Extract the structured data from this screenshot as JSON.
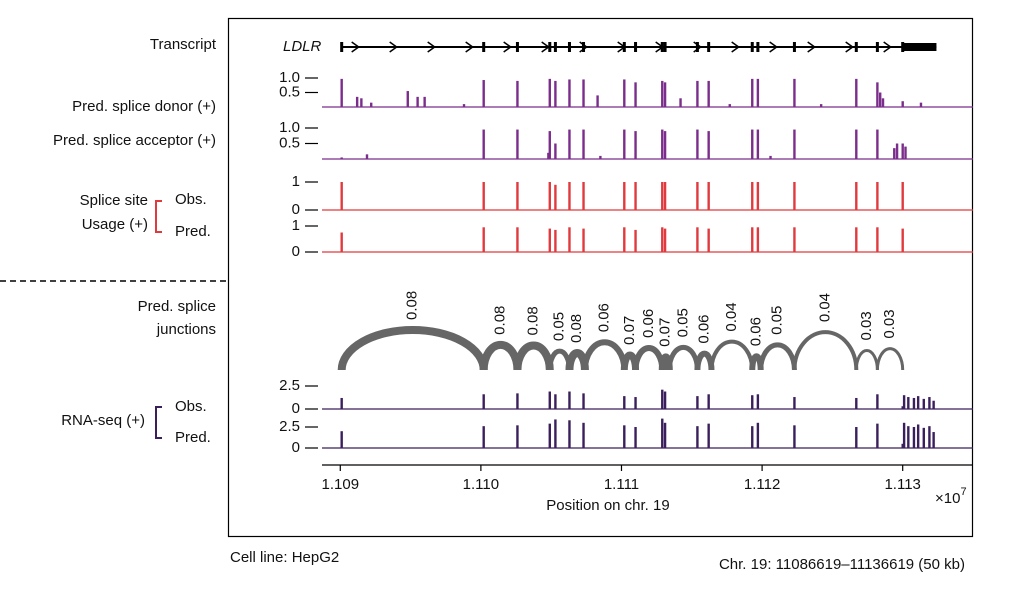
{
  "chart_data": {
    "type": "genome-tracks",
    "xlim": [
      1.10887,
      1.1135
    ],
    "xticks": [
      1.109,
      {
        "value": 1.11,
        "label": "1.110"
      },
      1.111,
      1.112,
      1.113
    ],
    "xlabel": "Position on chr. 19",
    "x_multiplier": "×10",
    "x_multiplier_exponent": "7",
    "footer_left": "Cell line: HepG2",
    "footer_right": "Chr. 19: 11086619–11136619 (50 kb)",
    "transcript": {
      "label": "Transcript",
      "name": "LDLR",
      "start": 1.10901,
      "end": 1.11324,
      "color": "#000000"
    },
    "sites": [
      1.10901,
      1.11002,
      1.11026,
      1.11049,
      1.11053,
      1.11063,
      1.11073,
      1.11102,
      1.1111,
      1.11129,
      1.11131,
      1.11154,
      1.11162,
      1.11193,
      1.11197,
      1.11223,
      1.11267,
      1.11282,
      1.113
    ],
    "usage_label": [
      "Splice site",
      "Usage (+)"
    ],
    "rna_label": "RNA-seq (+)",
    "junction_label": [
      "Pred. splice",
      "junctions"
    ],
    "tracks": [
      {
        "label": "Pred. splice donor (+)",
        "color": "#7b2d8b",
        "ylim": [
          0,
          1
        ],
        "yticks": [
          {
            "value": 1,
            "label": "1.0"
          },
          0.5
        ],
        "x": [
          1.10901,
          1.11002,
          1.11026,
          1.11049,
          1.11053,
          1.11063,
          1.11073,
          1.11102,
          1.1111,
          1.11129,
          1.11131,
          1.11154,
          1.11162,
          1.11193,
          1.11197,
          1.11223,
          1.11267,
          1.11282,
          1.113,
          1.10912,
          1.10915,
          1.10922,
          1.10948,
          1.10955,
          1.1096,
          1.10988,
          1.11083,
          1.11142,
          1.11177,
          1.11242,
          1.11284,
          1.11286,
          1.11313
        ],
        "values": [
          0.97,
          0.93,
          0.9,
          0.97,
          0.9,
          0.95,
          0.95,
          0.95,
          0.85,
          0.9,
          0.85,
          0.9,
          0.9,
          0.97,
          0.97,
          0.97,
          0.97,
          0.85,
          0.2,
          0.35,
          0.3,
          0.15,
          0.55,
          0.35,
          0.35,
          0.1,
          0.4,
          0.3,
          0.1,
          0.1,
          0.5,
          0.3,
          0.15
        ]
      },
      {
        "label": "Pred. splice acceptor (+)",
        "color": "#7b2d8b",
        "ylim": [
          0,
          1
        ],
        "yticks": [
          {
            "value": 1,
            "label": "1.0"
          },
          0.5
        ],
        "x": [
          1.10901,
          1.11002,
          1.11026,
          1.11049,
          1.11053,
          1.11063,
          1.11073,
          1.11102,
          1.1111,
          1.11129,
          1.11131,
          1.11154,
          1.11162,
          1.11193,
          1.11197,
          1.11223,
          1.11267,
          1.11282,
          1.113,
          1.10919,
          1.11048,
          1.11085,
          1.11206,
          1.11294,
          1.11296,
          1.11302
        ],
        "values": [
          0.05,
          0.95,
          0.95,
          0.9,
          0.5,
          0.95,
          0.95,
          0.95,
          0.9,
          0.95,
          0.9,
          0.95,
          0.9,
          0.95,
          0.95,
          0.95,
          0.95,
          0.95,
          0.5,
          0.15,
          0.2,
          0.1,
          0.1,
          0.35,
          0.5,
          0.4
        ]
      },
      {
        "label": "Obs.",
        "color": "#e03a3e",
        "ylim": [
          0,
          1
        ],
        "yticks": [
          1,
          0
        ],
        "x": [
          1.10901,
          1.11002,
          1.11026,
          1.11049,
          1.11053,
          1.11063,
          1.11073,
          1.11102,
          1.1111,
          1.11129,
          1.11131,
          1.11154,
          1.11162,
          1.11193,
          1.11197,
          1.11223,
          1.11267,
          1.11282,
          1.113
        ],
        "values": [
          1,
          1,
          1,
          1,
          0.9,
          1,
          1,
          1,
          1,
          1,
          1,
          1,
          1,
          1,
          1,
          1,
          1,
          1,
          1
        ]
      },
      {
        "label": "Pred.",
        "color": "#e03a3e",
        "ylim": [
          0,
          1
        ],
        "yticks": [
          1,
          0
        ],
        "x": [
          1.10901,
          1.11002,
          1.11026,
          1.11049,
          1.11053,
          1.11063,
          1.11073,
          1.11102,
          1.1111,
          1.11129,
          1.11131,
          1.11154,
          1.11162,
          1.11193,
          1.11197,
          1.11223,
          1.11267,
          1.11282,
          1.113
        ],
        "values": [
          0.75,
          0.95,
          0.95,
          0.9,
          0.85,
          0.95,
          0.9,
          0.95,
          0.85,
          0.95,
          0.9,
          0.95,
          0.9,
          0.95,
          0.95,
          0.95,
          0.95,
          0.95,
          0.9
        ]
      },
      {
        "label": "Obs.",
        "color": "#3b1f5c",
        "ylim": [
          0,
          3
        ],
        "yticks": [
          2.5,
          0
        ],
        "x": [
          1.10901,
          1.11002,
          1.11026,
          1.11049,
          1.11053,
          1.11063,
          1.11073,
          1.11102,
          1.1111,
          1.11129,
          1.11131,
          1.11154,
          1.11162,
          1.11193,
          1.11197,
          1.11223,
          1.11267,
          1.11282,
          1.113,
          1.11301,
          1.11304,
          1.11308,
          1.11311,
          1.11315,
          1.11319,
          1.11322
        ],
        "values": [
          1.2,
          1.6,
          1.7,
          1.9,
          1.6,
          1.9,
          1.7,
          1.4,
          1.3,
          2.1,
          1.9,
          1.4,
          1.6,
          1.5,
          1.6,
          1.3,
          1.2,
          1.6,
          0.3,
          1.5,
          1.3,
          1.2,
          1.4,
          1.1,
          1.3,
          0.9
        ]
      },
      {
        "label": "Pred.",
        "color": "#3b1f5c",
        "ylim": [
          0,
          4
        ],
        "yticks": [
          2.5,
          0
        ],
        "x": [
          1.10901,
          1.11002,
          1.11026,
          1.11049,
          1.11053,
          1.11063,
          1.11073,
          1.11102,
          1.1111,
          1.11129,
          1.11131,
          1.11154,
          1.11162,
          1.11193,
          1.11197,
          1.11223,
          1.11267,
          1.11282,
          1.113,
          1.11301,
          1.11304,
          1.11308,
          1.11311,
          1.11315,
          1.11319,
          1.11322
        ],
        "values": [
          2.0,
          2.6,
          2.7,
          2.9,
          3.4,
          3.3,
          3.0,
          2.7,
          2.5,
          3.5,
          3.0,
          2.6,
          2.9,
          2.6,
          3.0,
          2.7,
          2.5,
          2.9,
          0.5,
          3.0,
          2.6,
          2.5,
          2.8,
          2.4,
          2.6,
          1.9
        ]
      }
    ],
    "junctions": {
      "color": "#666666",
      "items": [
        {
          "start": 1.10901,
          "end": 1.11002,
          "value": 0.08
        },
        {
          "start": 1.11002,
          "end": 1.11026,
          "value": 0.08
        },
        {
          "start": 1.11026,
          "end": 1.11049,
          "value": 0.08
        },
        {
          "start": 1.11049,
          "end": 1.11063,
          "value": 0.05
        },
        {
          "start": 1.11063,
          "end": 1.11074,
          "value": 0.08
        },
        {
          "start": 1.11074,
          "end": 1.11102,
          "value": 0.06
        },
        {
          "start": 1.11102,
          "end": 1.1111,
          "value": 0.07
        },
        {
          "start": 1.1111,
          "end": 1.11129,
          "value": 0.06
        },
        {
          "start": 1.11129,
          "end": 1.11134,
          "value": 0.07
        },
        {
          "start": 1.11134,
          "end": 1.11154,
          "value": 0.05
        },
        {
          "start": 1.11154,
          "end": 1.11164,
          "value": 0.06
        },
        {
          "start": 1.11164,
          "end": 1.11193,
          "value": 0.04
        },
        {
          "start": 1.11193,
          "end": 1.11199,
          "value": 0.06
        },
        {
          "start": 1.11199,
          "end": 1.11223,
          "value": 0.05
        },
        {
          "start": 1.11223,
          "end": 1.11267,
          "value": 0.04
        },
        {
          "start": 1.11267,
          "end": 1.11282,
          "value": 0.03
        },
        {
          "start": 1.11282,
          "end": 1.113,
          "value": 0.03
        }
      ]
    }
  }
}
